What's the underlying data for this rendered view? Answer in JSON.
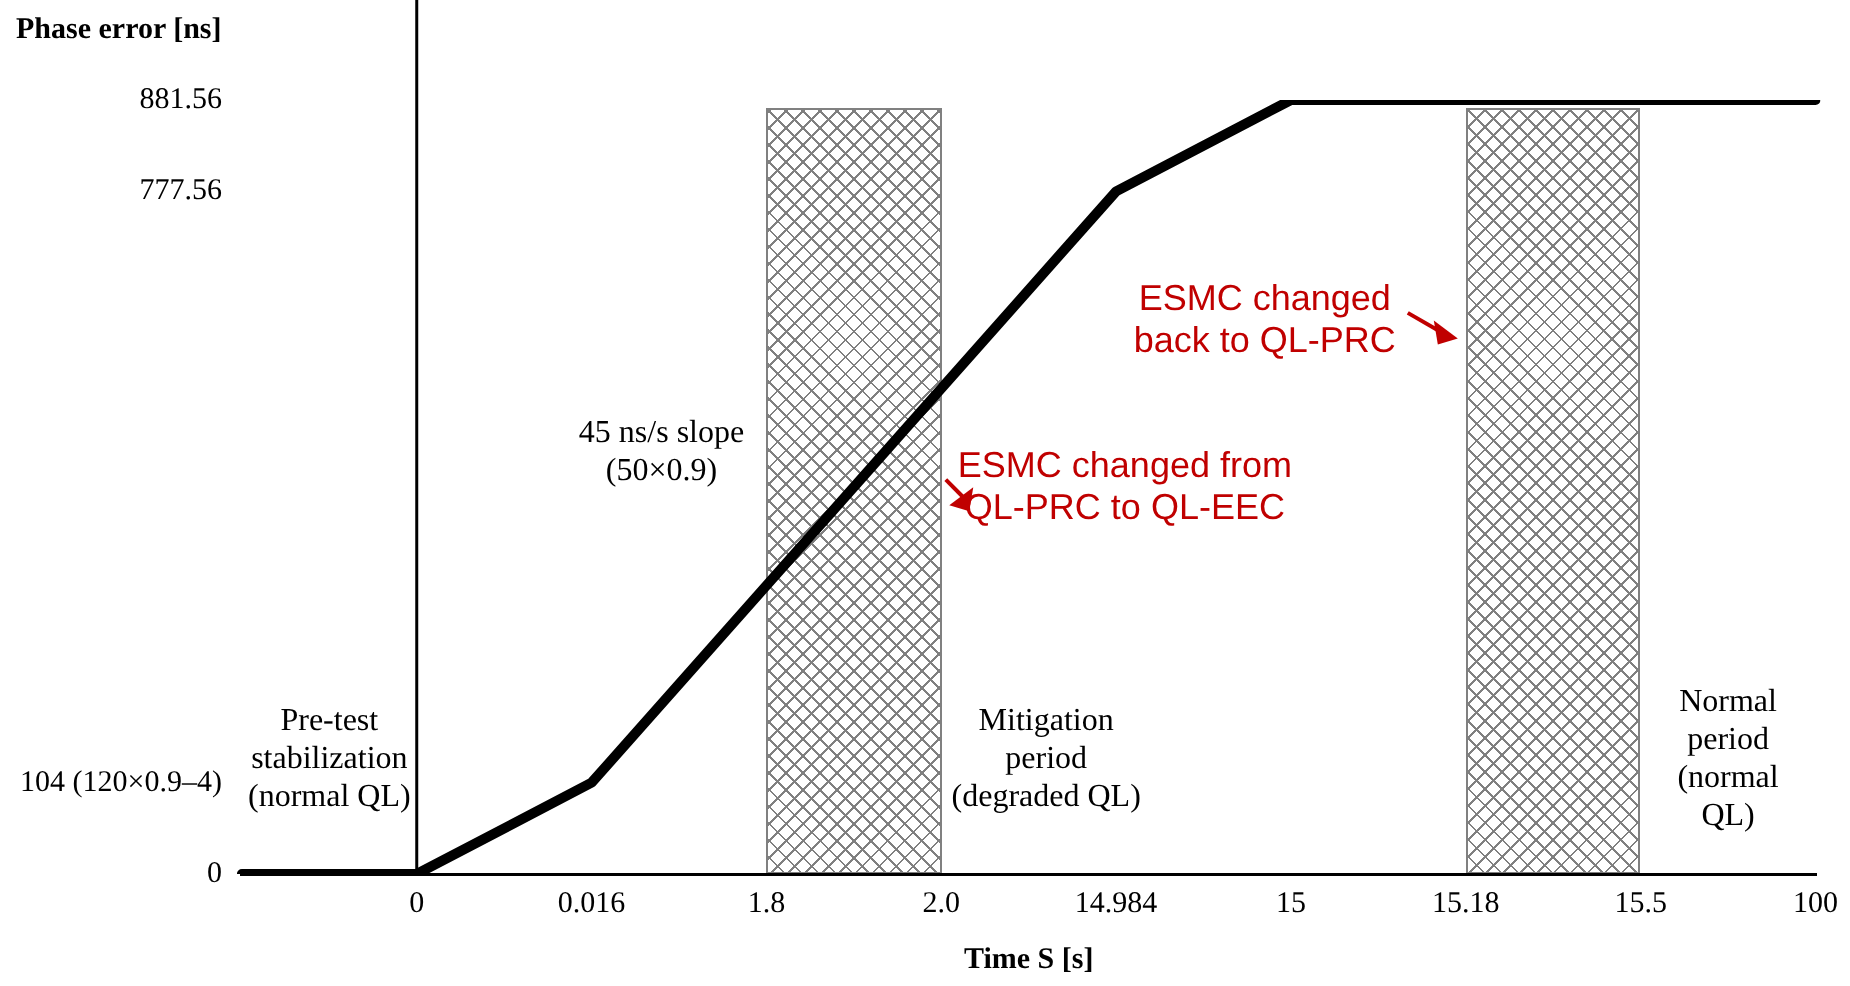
{
  "chart_data": {
    "type": "line",
    "ylabel": "Phase error [ns]",
    "xlabel": "Time S [s]",
    "categories": [
      null,
      "0",
      "0.016",
      "1.8",
      "2.0",
      "14.984",
      "15",
      "15.18",
      "15.5",
      "100"
    ],
    "series": [
      {
        "color": "#000000",
        "values": [
          0,
          0,
          104,
          null,
          null,
          777.56,
          881.56,
          881.56,
          881.56,
          881.56
        ]
      }
    ],
    "ylim": [
      0,
      881.56
    ],
    "yticks": [
      0,
      {
        "value": 104,
        "label": "104 (120×0.9–4)"
      },
      777.56,
      881.56
    ],
    "bands": [
      {
        "axis": "x",
        "from": "1.8",
        "to": "2.0",
        "color": "#808080"
      },
      {
        "axis": "x",
        "from": "15.18",
        "to": "15.5",
        "color": "#808080"
      }
    ],
    "ref_lines": [
      {
        "axis": "x",
        "value": "0",
        "color": "#000000"
      }
    ],
    "annotations": [
      "45 ns/s slope (50×0.9)",
      "Pre-test stabilization (normal QL)",
      "Mitigation period (degraded QL)",
      "Normal period (normal QL)",
      {
        "text": "ESMC changed from QL-PRC to QL-EEC",
        "x": "2.0",
        "y": 420
      },
      {
        "text": "ESMC changed back to QL-PRC",
        "x": "15.18",
        "y": 610
      }
    ],
    "grid": false,
    "legend": false,
    "marker": "none",
    "line_style": "solid"
  }
}
